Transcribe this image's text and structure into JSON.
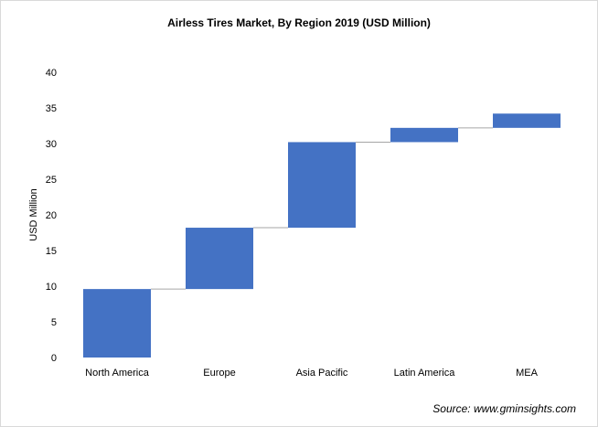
{
  "chart_data": {
    "type": "bar",
    "subtype": "waterfall",
    "title": "Airless Tires Market, By Region 2019 (USD Million)",
    "xlabel": "",
    "ylabel": "USD Million",
    "categories": [
      "North America",
      "Europe",
      "Asia Pacific",
      "Latin America",
      "MEA"
    ],
    "series": [
      {
        "values": [
          9.6,
          8.6,
          12.0,
          2.0,
          2.0
        ]
      }
    ],
    "cumulative_base": [
      0,
      9.6,
      18.2,
      30.2,
      32.2
    ],
    "ylim": [
      0,
      40
    ],
    "yticks": [
      "0",
      "5",
      "10",
      "15",
      "20",
      "25",
      "30",
      "35",
      "40"
    ],
    "grid": false,
    "legend": "none",
    "colors": {
      "bar": "#4472c4",
      "connector": "#a6a6a6"
    }
  },
  "source": "Source: www.gminsights.com"
}
